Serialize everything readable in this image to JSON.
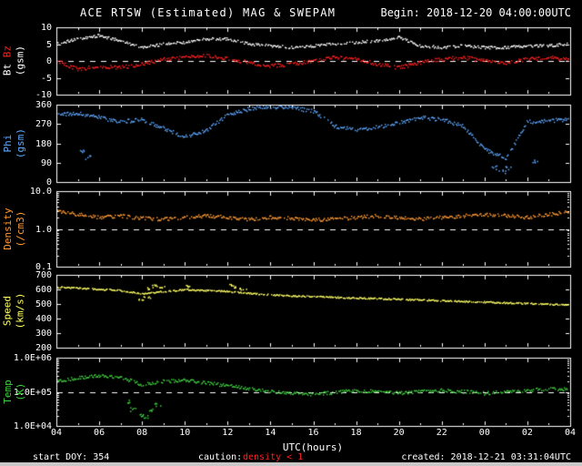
{
  "header": {
    "title": "ACE RTSW (Estimated) MAG & SWEPAM",
    "begin": "Begin: 2018-12-20 04:00:00UTC"
  },
  "footer": {
    "start_doy": "start DOY: 354",
    "caution_label": "caution:",
    "caution_value": "density < 1",
    "created": "created: 2018-12-21 03:31:04UTC"
  },
  "xaxis": {
    "title": "UTC(hours)",
    "tick_hours": [
      4,
      6,
      8,
      10,
      12,
      14,
      16,
      18,
      20,
      22,
      24,
      26,
      28
    ],
    "tick_labels": [
      "04",
      "06",
      "08",
      "10",
      "12",
      "14",
      "16",
      "18",
      "20",
      "22",
      "00",
      "02",
      "04"
    ]
  },
  "colors": {
    "background": "#000000",
    "axis": "#ffffff",
    "caution_red": "#ff2020",
    "edge_gray": "#c8c8c8"
  },
  "chart_data": {
    "type": "scatter",
    "x_label": "UTC(hours)",
    "x_range": [
      4,
      28
    ],
    "x_hours": [
      4,
      5,
      6,
      7,
      8,
      9,
      10,
      11,
      12,
      13,
      14,
      15,
      16,
      17,
      18,
      19,
      20,
      21,
      22,
      23,
      24,
      25,
      26,
      27,
      28
    ],
    "panels": [
      {
        "name": "magnetic-field",
        "ylabel": [
          {
            "text": "Bt",
            "color": "#ffffff"
          },
          {
            "text": "Bz",
            "color": "#ff2020"
          }
        ],
        "yunit": {
          "text": "(gsm)",
          "color": "#ffffff"
        },
        "yscale": "linear",
        "yrange": [
          -10,
          10
        ],
        "yticks": [
          {
            "v": 10,
            "label": "10"
          },
          {
            "v": 5,
            "label": "5"
          },
          {
            "v": 0,
            "label": "0"
          },
          {
            "v": -5,
            "label": "-5"
          },
          {
            "v": -10,
            "label": "-10"
          }
        ],
        "refline": 0,
        "series": [
          {
            "name": "Bt",
            "color": "#ffffff",
            "values": [
              5,
              6.5,
              7.5,
              6,
              4,
              5,
              5.5,
              6.5,
              6.5,
              5,
              4.5,
              4,
              4.5,
              5,
              5.5,
              6,
              7,
              4.5,
              4,
              4.5,
              4,
              4,
              4.5,
              4.5,
              5
            ]
          },
          {
            "name": "Bz",
            "color": "#ff2020",
            "values": [
              0,
              -2.5,
              -1.5,
              -2,
              -1,
              0.5,
              1,
              1.5,
              0.5,
              -0.5,
              -1.5,
              -1,
              0,
              1,
              0.5,
              -1,
              -2,
              -0.5,
              0.5,
              1,
              0,
              -0.5,
              0.5,
              1,
              0.5
            ]
          }
        ]
      },
      {
        "name": "phi-angle",
        "ylabel": [
          {
            "text": "Phi",
            "color": "#5fa8ff"
          }
        ],
        "yunit": {
          "text": "(gsm)",
          "color": "#5fa8ff"
        },
        "yscale": "linear",
        "yrange": [
          0,
          360
        ],
        "yticks": [
          {
            "v": 360,
            "label": "360"
          },
          {
            "v": 270,
            "label": "270"
          },
          {
            "v": 180,
            "label": "180"
          },
          {
            "v": 90,
            "label": "90"
          },
          {
            "v": 0,
            "label": "0"
          }
        ],
        "refline": null,
        "series": [
          {
            "name": "Phi",
            "color": "#5fa8ff",
            "values": [
              310,
              320,
              300,
              280,
              290,
              250,
              210,
              240,
              310,
              340,
              350,
              345,
              330,
              260,
              240,
              255,
              275,
              300,
              290,
              260,
              150,
              110,
              280,
              285,
              290
            ],
            "extra_points": [
              [
                5.2,
                150
              ],
              [
                5.5,
                110
              ],
              [
                24.5,
                70
              ],
              [
                24.8,
                45
              ],
              [
                25.1,
                60
              ],
              [
                26.4,
                90
              ]
            ]
          }
        ]
      },
      {
        "name": "density",
        "ylabel": [
          {
            "text": "Density",
            "color": "#ff9a33"
          }
        ],
        "yunit": {
          "text": "(/cm3)",
          "color": "#ff9a33"
        },
        "yscale": "log",
        "yrange": [
          0.1,
          10
        ],
        "yticks": [
          {
            "v": 10,
            "label": "10.0"
          },
          {
            "v": 1,
            "label": "1.0"
          },
          {
            "v": 0.1,
            "label": "0.1"
          }
        ],
        "refline": 1,
        "series": [
          {
            "name": "Density",
            "color": "#ff9a33",
            "values": [
              3.0,
              2.4,
              2.0,
              2.2,
              1.9,
              1.8,
              2.0,
              2.2,
              2.0,
              1.8,
              2.0,
              1.9,
              1.7,
              1.8,
              2.0,
              2.2,
              2.0,
              1.8,
              2.0,
              2.2,
              2.4,
              2.2,
              2.0,
              2.4,
              2.8
            ]
          }
        ]
      },
      {
        "name": "speed",
        "ylabel": [
          {
            "text": "Speed",
            "color": "#ffff66"
          }
        ],
        "yunit": {
          "text": "(km/s)",
          "color": "#ffff66"
        },
        "yscale": "linear",
        "yrange": [
          200,
          700
        ],
        "yticks": [
          {
            "v": 700,
            "label": "700"
          },
          {
            "v": 600,
            "label": "600"
          },
          {
            "v": 500,
            "label": "500"
          },
          {
            "v": 400,
            "label": "400"
          },
          {
            "v": 300,
            "label": "300"
          },
          {
            "v": 200,
            "label": "200"
          }
        ],
        "refline": null,
        "series": [
          {
            "name": "Speed",
            "color": "#ffff66",
            "values": [
              615,
              608,
              600,
              592,
              570,
              585,
              598,
              592,
              585,
              572,
              562,
              555,
              550,
              545,
              540,
              536,
              532,
              527,
              522,
              517,
              512,
              507,
              502,
              497,
              494
            ],
            "extra_points": [
              [
                8.0,
                530
              ],
              [
                8.2,
                545
              ],
              [
                8.4,
                605
              ],
              [
                8.6,
                625
              ],
              [
                8.9,
                615
              ],
              [
                10.1,
                622
              ],
              [
                12.1,
                628
              ],
              [
                12.4,
                612
              ],
              [
                12.7,
                598
              ]
            ]
          }
        ]
      },
      {
        "name": "temperature",
        "ylabel": [
          {
            "text": "Temp",
            "color": "#3ecf3e"
          }
        ],
        "yunit": {
          "text": "(K)",
          "color": "#3ecf3e"
        },
        "yscale": "log",
        "yrange": [
          10000,
          1000000
        ],
        "yticks": [
          {
            "v": 1000000,
            "label": "1.0E+06"
          },
          {
            "v": 100000,
            "label": "1.0E+05"
          },
          {
            "v": 10000,
            "label": "1.0E+04"
          }
        ],
        "refline": 100000,
        "series": [
          {
            "name": "Temp",
            "color": "#3ecf3e",
            "values": [
              200000,
              250000,
              300000,
              260000,
              160000,
              200000,
              220000,
              180000,
              150000,
              125000,
              100000,
              90000,
              85000,
              95000,
              110000,
              100000,
              90000,
              100000,
              110000,
              100000,
              90000,
              100000,
              110000,
              120000,
              120000
            ],
            "extra_points": [
              [
                7.3,
                50000
              ],
              [
                7.6,
                30000
              ],
              [
                7.9,
                22000
              ],
              [
                8.1,
                18000
              ],
              [
                8.4,
                28000
              ],
              [
                8.7,
                40000
              ]
            ]
          }
        ]
      }
    ]
  }
}
